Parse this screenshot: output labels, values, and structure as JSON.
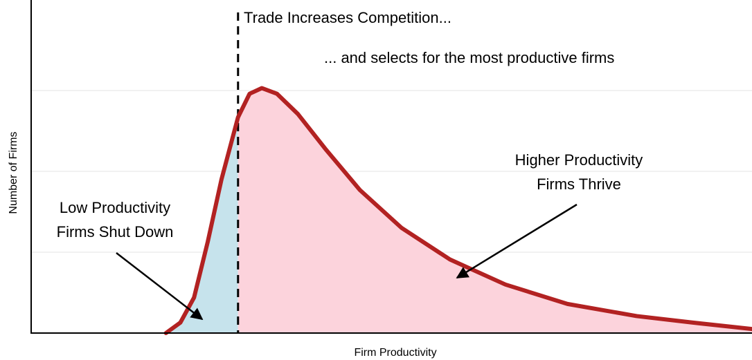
{
  "chart_data": {
    "type": "area",
    "x_label": "Firm Productivity",
    "y_label": "Number of Firms",
    "x": [
      1.87,
      2.07,
      2.26,
      2.45,
      2.64,
      2.87,
      3.03,
      3.2,
      3.41,
      3.7,
      4.08,
      4.56,
      5.14,
      5.81,
      6.58,
      7.44,
      8.4,
      9.17,
      10
    ],
    "values": [
      0,
      0.13,
      0.44,
      1.13,
      1.9,
      2.67,
      2.96,
      3.03,
      2.96,
      2.71,
      2.28,
      1.77,
      1.3,
      0.91,
      0.6,
      0.36,
      0.21,
      0.13,
      0.05
    ],
    "xlim": [
      0,
      10
    ],
    "ylim": [
      0,
      4.12
    ],
    "yticks": [
      0,
      1,
      2,
      3
    ],
    "grid": true,
    "line_color": "#b22222",
    "threshold": 2.87,
    "low_fill": "#c6e3ec",
    "high_fill": "#fcd3dc",
    "annotations": [
      {
        "lines": [
          "Trade Increases Competition..."
        ]
      },
      {
        "lines": [
          "... and selects for the most productive firms"
        ]
      },
      {
        "lines": [
          "Higher Productivity",
          "Firms Thrive"
        ]
      },
      {
        "lines": [
          "Low Productivity",
          "Firms Shut Down"
        ]
      }
    ]
  }
}
